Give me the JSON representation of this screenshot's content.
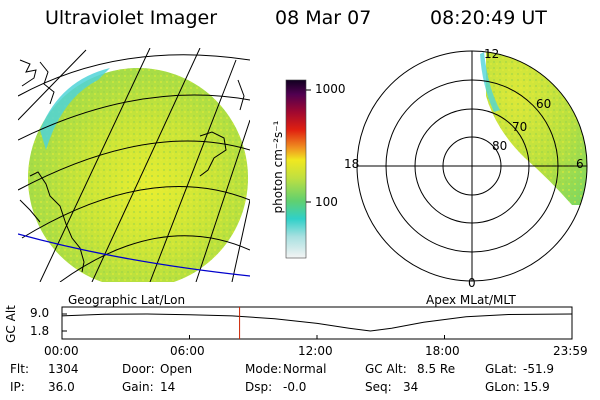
{
  "header": {
    "title": "Ultraviolet Imager",
    "date": "08 Mar 07",
    "time": "08:20:49 UT"
  },
  "colorbar": {
    "unit_label": "photon cm⁻²s⁻¹",
    "tick_labels": [
      "1000",
      "100"
    ]
  },
  "geo_panel": {
    "caption": "Geographic Lat/Lon"
  },
  "apex_panel": {
    "caption": "Apex MLat/MLT",
    "lat_labels": [
      "80",
      "70",
      "60"
    ],
    "mlt_labels": [
      "12",
      "18",
      "6",
      "0"
    ]
  },
  "altitude_plot": {
    "ylabel": "GC Alt",
    "y_ticks": [
      "9.0",
      "1.8"
    ],
    "x_ticks": [
      "00:00",
      "06:00",
      "12:00",
      "18:00",
      "23:59"
    ],
    "current_time_hours": 8.35,
    "chart_data": {
      "type": "line",
      "x": [
        0,
        2,
        4,
        6,
        8,
        10,
        12,
        13.5,
        14.5,
        15.5,
        17,
        19,
        21,
        23.98
      ],
      "values": [
        8.2,
        8.9,
        9.0,
        8.7,
        8.2,
        7.0,
        5.0,
        3.0,
        1.8,
        3.0,
        5.5,
        7.8,
        8.8,
        9.0
      ],
      "ylabel": "GC Alt",
      "ylim": [
        1.8,
        9.0
      ],
      "xlim": [
        0,
        23.98
      ]
    }
  },
  "status": {
    "row1": [
      {
        "label": "Flt:",
        "value": "1304"
      },
      {
        "label": "Door:",
        "value": "Open"
      },
      {
        "label": "Mode:",
        "value": "Normal"
      },
      {
        "label": "GC Alt:",
        "value": "8.5 Re"
      },
      {
        "label": "GLat:",
        "value": "-51.9"
      }
    ],
    "row2": [
      {
        "label": "IP:",
        "value": "36.0"
      },
      {
        "label": "Gain:",
        "value": "14"
      },
      {
        "label": "Dsp:",
        "value": "-0.0"
      },
      {
        "label": "Seq:",
        "value": "34"
      },
      {
        "label": "GLon:",
        "value": "15.9"
      }
    ]
  },
  "colors": {
    "image_green": "#b8e040",
    "image_yellow": "#e8ee30",
    "image_cyan": "#40d0d8",
    "terminator": "#0000cc",
    "time_marker": "#cc2200"
  }
}
